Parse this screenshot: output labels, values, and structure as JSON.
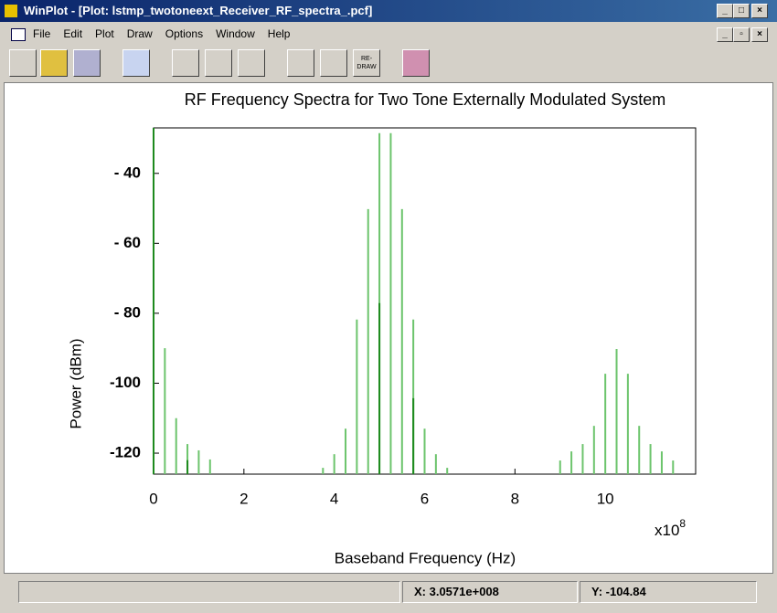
{
  "window": {
    "title": "WinPlot - [Plot: lstmp_twotoneext_Receiver_RF_spectra_.pcf]",
    "menu": [
      "File",
      "Edit",
      "Plot",
      "Draw",
      "Options",
      "Window",
      "Help"
    ],
    "toolbar_redraw": [
      "RE-",
      "DRAW"
    ],
    "status": [
      "X: 3.0571e+008",
      "Y: -104.84"
    ]
  },
  "chart_data": {
    "type": "stem",
    "title": "RF Frequency Spectra for Two Tone Externally Modulated System",
    "xlabel": "Baseband Frequency (Hz)",
    "ylabel": "Power (dBm)",
    "x_multiplier": {
      "base": "x10",
      "exponent": "8"
    },
    "xlim": [
      0,
      12
    ],
    "xticks": [
      0,
      2,
      4,
      6,
      8,
      10
    ],
    "ylim": [
      -126,
      -27
    ],
    "yticks": [
      {
        "value": -40,
        "label": "- 40"
      },
      {
        "value": -60,
        "label": "- 60"
      },
      {
        "value": -80,
        "label": "- 80"
      },
      {
        "value": -100,
        "label": "-100"
      },
      {
        "value": -120,
        "label": "-120"
      }
    ],
    "grid": false,
    "series": [
      {
        "color": "#6cc46c",
        "x": [
          0,
          0.25,
          0.5,
          0.75,
          1.0,
          1.25,
          3.75,
          4.0,
          4.25,
          4.5,
          4.75,
          5.0,
          5.25,
          5.5,
          5.75,
          6.0,
          6.25,
          6.5,
          9.0,
          9.25,
          9.5,
          9.75,
          10.0,
          10.25,
          10.5,
          10.75,
          11.0,
          11.25,
          11.5
        ],
        "values": [
          -27,
          -90,
          -110,
          -117.4,
          -119.2,
          -121.8,
          -124.2,
          -120.3,
          -113,
          -81.8,
          -50.2,
          -28.5,
          -28.5,
          -50.2,
          -81.8,
          -113,
          -120.3,
          -124.2,
          -122.1,
          -119.5,
          -117.4,
          -112.2,
          -97.3,
          -90.2,
          -97.3,
          -112.2,
          -117.4,
          -119.5,
          -122.1
        ]
      },
      {
        "color": "#1e8a1e",
        "x": [
          0,
          0.75,
          5.0,
          5.75
        ],
        "values": [
          -27,
          -122,
          -77.1,
          -104.3
        ]
      }
    ]
  }
}
